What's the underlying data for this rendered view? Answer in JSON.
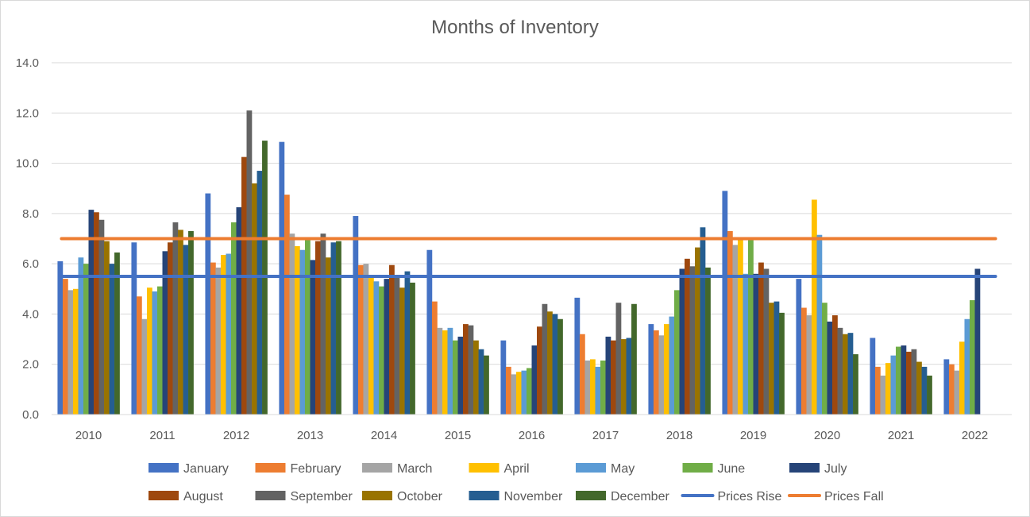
{
  "chart_data": {
    "type": "bar",
    "title": "Months of Inventory",
    "xlabel": "",
    "ylabel": "",
    "ylim": [
      0,
      14
    ],
    "yticks": [
      "0.0",
      "2.0",
      "4.0",
      "6.0",
      "8.0",
      "10.0",
      "12.0",
      "14.0"
    ],
    "grid": true,
    "legend_position": "bottom",
    "categories": [
      "2010",
      "2011",
      "2012",
      "2013",
      "2014",
      "2015",
      "2016",
      "2017",
      "2018",
      "2019",
      "2020",
      "2021",
      "2022"
    ],
    "series": [
      {
        "name": "January",
        "color": "#4472C4",
        "values": [
          6.1,
          6.85,
          8.8,
          10.85,
          7.9,
          6.55,
          2.95,
          4.65,
          3.6,
          8.9,
          5.4,
          3.05,
          2.2
        ]
      },
      {
        "name": "February",
        "color": "#ED7D31",
        "values": [
          5.4,
          4.7,
          6.05,
          8.75,
          5.95,
          4.5,
          1.9,
          3.2,
          3.35,
          7.3,
          4.25,
          1.9,
          2.0
        ]
      },
      {
        "name": "March",
        "color": "#A5A5A5",
        "values": [
          4.95,
          3.8,
          5.85,
          7.2,
          6.0,
          3.45,
          1.6,
          2.15,
          3.15,
          6.75,
          3.95,
          1.55,
          1.75
        ]
      },
      {
        "name": "April",
        "color": "#FFC000",
        "values": [
          5.0,
          5.05,
          6.35,
          6.7,
          5.5,
          3.35,
          1.7,
          2.2,
          3.6,
          7.0,
          8.55,
          2.05,
          2.9
        ]
      },
      {
        "name": "May",
        "color": "#5B9BD5",
        "values": [
          6.25,
          4.9,
          6.4,
          6.55,
          5.3,
          3.45,
          1.75,
          1.9,
          3.9,
          5.6,
          7.15,
          2.35,
          3.8
        ]
      },
      {
        "name": "June",
        "color": "#70AD47",
        "values": [
          6.0,
          5.1,
          7.65,
          6.95,
          5.1,
          2.95,
          1.85,
          2.15,
          4.95,
          6.95,
          4.45,
          2.7,
          4.55
        ]
      },
      {
        "name": "July",
        "color": "#264478",
        "values": [
          8.15,
          6.5,
          8.25,
          6.15,
          5.4,
          3.1,
          2.75,
          3.1,
          5.8,
          5.6,
          3.7,
          2.75,
          5.8
        ]
      },
      {
        "name": "August",
        "color": "#9E480E",
        "values": [
          8.05,
          6.85,
          10.25,
          6.9,
          5.95,
          3.6,
          3.5,
          2.95,
          6.2,
          6.05,
          3.95,
          2.5,
          null
        ]
      },
      {
        "name": "September",
        "color": "#636363",
        "values": [
          7.75,
          7.65,
          12.1,
          7.2,
          5.45,
          3.55,
          4.4,
          4.45,
          5.9,
          5.8,
          3.45,
          2.6,
          null
        ]
      },
      {
        "name": "October",
        "color": "#997300",
        "values": [
          6.9,
          7.35,
          9.2,
          6.25,
          5.05,
          2.95,
          4.1,
          3.0,
          6.65,
          4.45,
          3.2,
          2.1,
          null
        ]
      },
      {
        "name": "November",
        "color": "#255E91",
        "values": [
          6.0,
          6.75,
          9.7,
          6.85,
          5.7,
          2.6,
          4.0,
          3.05,
          7.45,
          4.5,
          3.25,
          1.9,
          null
        ]
      },
      {
        "name": "December",
        "color": "#43682B",
        "values": [
          6.45,
          7.3,
          10.9,
          6.9,
          5.25,
          2.35,
          3.8,
          4.4,
          5.85,
          4.05,
          2.4,
          1.55,
          null
        ]
      }
    ],
    "lines": [
      {
        "name": "Prices Rise",
        "color": "#4472C4",
        "value": 5.5
      },
      {
        "name": "Prices Fall",
        "color": "#ED7D31",
        "value": 7.0
      }
    ]
  }
}
